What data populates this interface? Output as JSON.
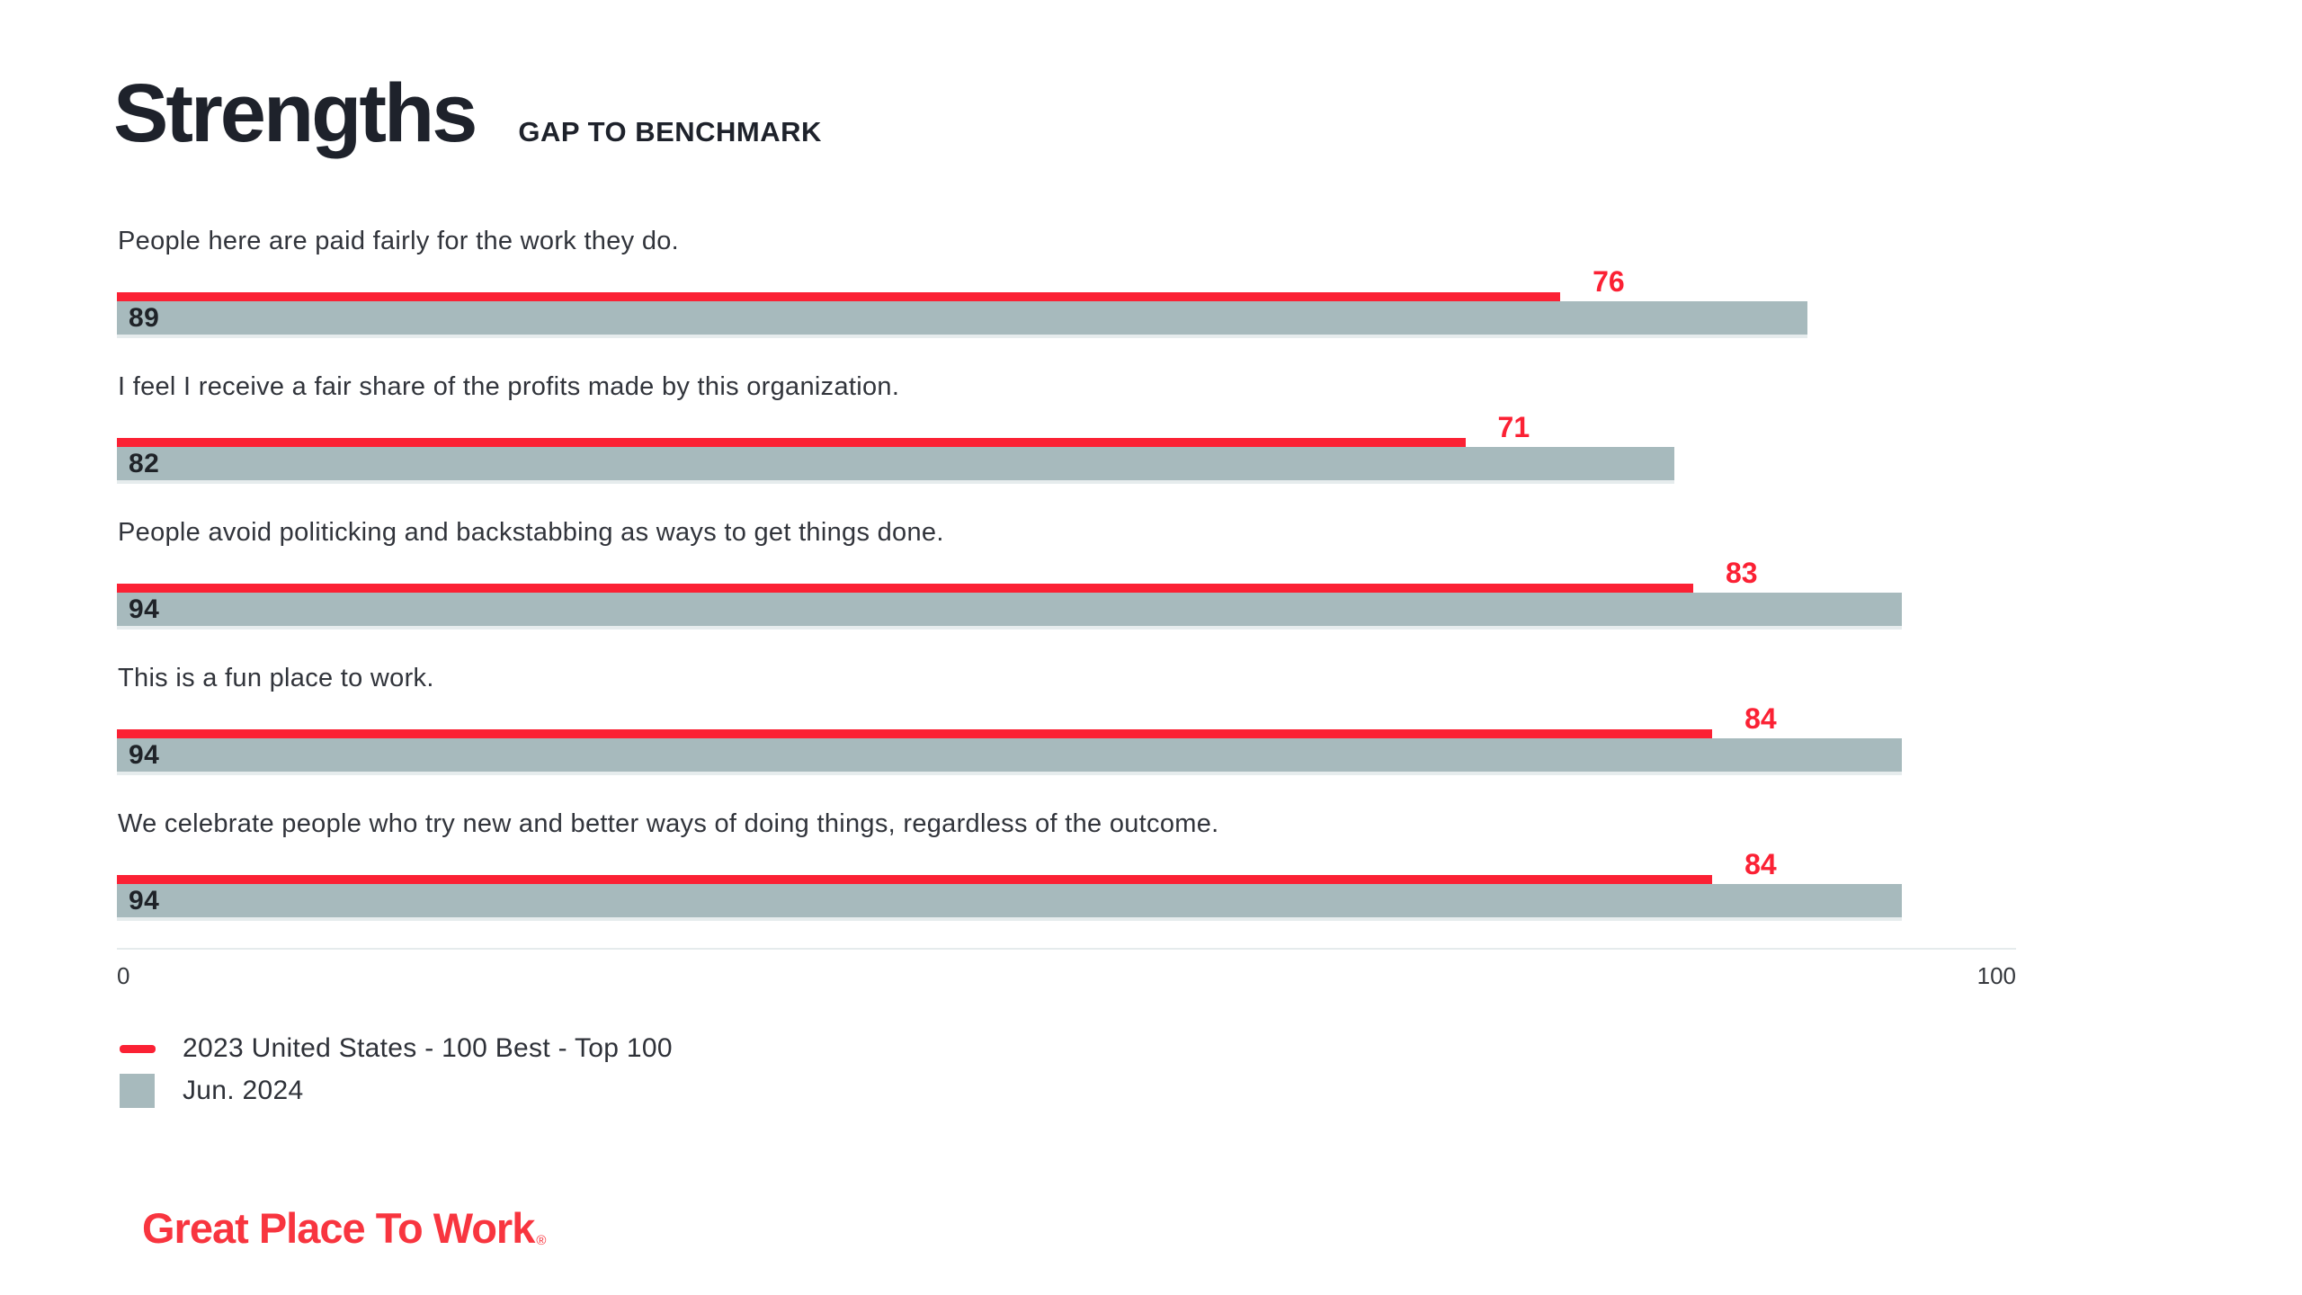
{
  "page": {
    "title": "Strengths",
    "subtitle": "GAP TO BENCHMARK"
  },
  "colors": {
    "benchmark_red": "#FB2134",
    "current_bar_gray": "#A7BABD",
    "text_dark": "#2E3138",
    "axis_line": "#E5EBEC",
    "logo_red": "#F8353F"
  },
  "chart_data": {
    "type": "bar",
    "orientation": "horizontal",
    "title": "Strengths",
    "subtitle": "GAP TO BENCHMARK",
    "xlim": [
      0,
      100
    ],
    "x_tick_labels": [
      "0",
      "100"
    ],
    "grid": false,
    "legend_position": "bottom-left",
    "categories": [
      "People here are paid fairly for the work they do.",
      "I feel I receive a fair share of the profits made by this organization.",
      "People avoid politicking and backstabbing as ways to get things done.",
      "This is a fun place to work.",
      "We celebrate people who try new and better ways of doing things, regardless of the outcome."
    ],
    "series": [
      {
        "name": "2023 United States - 100 Best - Top 100",
        "style": "benchmark-line",
        "color": "#FB2134",
        "values": [
          76,
          71,
          83,
          84,
          84
        ]
      },
      {
        "name": "Jun. 2024",
        "style": "bar",
        "color": "#A7BABD",
        "values": [
          89,
          82,
          94,
          94,
          94
        ]
      }
    ]
  },
  "axis": {
    "min_label": "0",
    "max_label": "100"
  },
  "legend": {
    "items": [
      {
        "label": "2023 United States - 100 Best - Top 100",
        "swatch": "red-dash"
      },
      {
        "label": "Jun. 2024",
        "swatch": "gray-square"
      }
    ]
  },
  "logo": {
    "text": "Great Place To Work",
    "registered": "®"
  }
}
